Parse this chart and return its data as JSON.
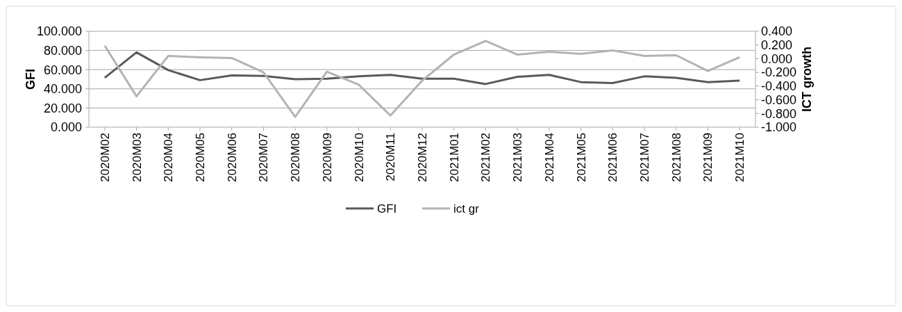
{
  "chart_data": {
    "type": "line",
    "categories": [
      "2020M02",
      "2020M03",
      "2020M04",
      "2020M05",
      "2020M06",
      "2020M07",
      "2020M08",
      "2020M09",
      "2020M10",
      "2020M11",
      "2020M12",
      "2021M01",
      "2021M02",
      "2021M03",
      "2021M04",
      "2021M05",
      "2021M06",
      "2021M07",
      "2021M08",
      "2021M09",
      "2021M10"
    ],
    "series": [
      {
        "name": "GFI",
        "color": "#595959",
        "values": [
          51.5,
          78,
          59.5,
          49,
          54,
          53.5,
          50,
          50.5,
          53,
          54.5,
          50.5,
          50.5,
          45,
          52.5,
          54.5,
          47,
          46,
          53,
          51.5,
          47,
          48.5
        ]
      },
      {
        "name": "ict gr",
        "color": "#b3b3b3",
        "axis": "y2",
        "values": [
          0.19,
          -0.55,
          0.04,
          0.02,
          0.01,
          -0.2,
          -0.85,
          -0.19,
          -0.38,
          -0.83,
          -0.32,
          0.06,
          0.26,
          0.06,
          0.1,
          0.07,
          0.12,
          0.04,
          0.05,
          -0.18,
          0.02
        ]
      }
    ],
    "ylabel": "GFI",
    "y2label": "ICT growth",
    "ylim": [
      0,
      100
    ],
    "yticks": [
      {
        "value": 0,
        "label": "0.000"
      },
      {
        "value": 20,
        "label": "20.000"
      },
      {
        "value": 40,
        "label": "40.000"
      },
      {
        "value": 60,
        "label": "60.000"
      },
      {
        "value": 80,
        "label": "80.000"
      },
      {
        "value": 100,
        "label": "100.000"
      }
    ],
    "y2lim": [
      -1,
      0.4
    ],
    "y2ticks": [
      {
        "value": -1,
        "label": "-1.000"
      },
      {
        "value": -0.8,
        "label": "-0.800"
      },
      {
        "value": -0.6,
        "label": "-0.600"
      },
      {
        "value": -0.4,
        "label": "-0.400"
      },
      {
        "value": -0.2,
        "label": "-0.200"
      },
      {
        "value": 0,
        "label": "0.000"
      },
      {
        "value": 0.2,
        "label": "0.200"
      },
      {
        "value": 0.4,
        "label": "0.400"
      }
    ],
    "grid": "y",
    "legend": "bottom"
  }
}
